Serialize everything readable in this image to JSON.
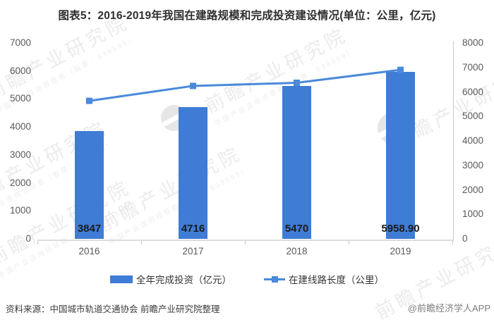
{
  "title": "图表5：2016-2019年我国在建路规模和完成投资建设情况(单位：公里，亿元)",
  "chart_data": {
    "type": "bar",
    "subtype": "combo bar+line, dual axis",
    "title": "图表5：2016-2019年我国在建路规模和完成投资建设情况(单位：公里，亿元)",
    "xlabel": "",
    "ylabel_left": "全年完成投资（亿元）",
    "ylabel_right": "在建线路长度（公里）",
    "categories": [
      "2016",
      "2017",
      "2018",
      "2019"
    ],
    "series": [
      {
        "name": "全年完成投资（亿元）",
        "type": "bar",
        "axis": "left",
        "values": [
          3847,
          4716,
          5470,
          5958.9
        ],
        "labels": [
          "3847",
          "4716",
          "5470",
          "5958.90"
        ],
        "color": "#3E7CD6"
      },
      {
        "name": "在建线路长度（公里）",
        "type": "line",
        "axis": "right",
        "values": [
          5636.5,
          6246.3,
          6374,
          6902.5
        ],
        "color": "#4A89DC"
      }
    ],
    "left_axis": {
      "min": 0,
      "max": 7000,
      "step": 1000
    },
    "right_axis": {
      "min": 0,
      "max": 8000,
      "step": 1000
    },
    "grid": false,
    "legend_position": "bottom"
  },
  "legend": {
    "items": [
      {
        "label": "全年完成投资（亿元）",
        "swatch": "bar"
      },
      {
        "label": "在建线路长度（公里）",
        "swatch": "line-marker"
      }
    ]
  },
  "footer": {
    "source": "资料来源：中国城市轨道交通协会 前瞻产业研究院整理",
    "credit": "@前瞻经济学人APP"
  },
  "watermark": {
    "text": "前瞻产业研究院",
    "subtext": "中国产业咨询领导者（股票：839599）"
  },
  "colors": {
    "bar": "#3E7CD6",
    "line": "#4A89DC",
    "axis_line": "#dcdcdc",
    "axis_text": "#595959",
    "title_text": "#2e2e2e"
  }
}
